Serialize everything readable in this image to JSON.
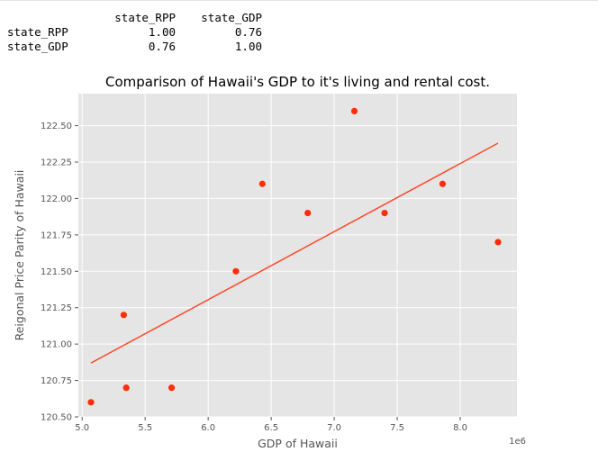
{
  "correlation_table": {
    "columns": [
      "state_RPP",
      "state_GDP"
    ],
    "rows": [
      {
        "label": "state_RPP",
        "values": [
          "1.00",
          "0.76"
        ]
      },
      {
        "label": "state_GDP",
        "values": [
          "0.76",
          "1.00"
        ]
      }
    ]
  },
  "chart_data": {
    "type": "scatter",
    "title": "Comparison of Hawaii's GDP to it's living and rental cost.",
    "xlabel": "GDP of Hawaii",
    "ylabel": "Reigonal Price Parity of Hawaii",
    "x_offset_label": "1e6",
    "xlim": [
      4.97,
      8.45
    ],
    "ylim": [
      120.5,
      122.72
    ],
    "x_ticks": [
      5.0,
      5.5,
      6.0,
      6.5,
      7.0,
      7.5,
      8.0
    ],
    "x_tick_labels": [
      "5.0",
      "5.5",
      "6.0",
      "6.5",
      "7.0",
      "7.5",
      "8.0"
    ],
    "y_ticks": [
      120.5,
      120.75,
      121.0,
      121.25,
      121.5,
      121.75,
      122.0,
      122.25,
      122.5
    ],
    "y_tick_labels": [
      "120.50",
      "120.75",
      "121.00",
      "121.25",
      "121.50",
      "121.75",
      "122.00",
      "122.25",
      "122.50"
    ],
    "grid": true,
    "points": [
      {
        "x": 5.07,
        "y": 120.6
      },
      {
        "x": 5.33,
        "y": 121.2
      },
      {
        "x": 5.35,
        "y": 120.7
      },
      {
        "x": 5.71,
        "y": 120.7
      },
      {
        "x": 6.22,
        "y": 121.5
      },
      {
        "x": 6.43,
        "y": 122.1
      },
      {
        "x": 6.79,
        "y": 121.9
      },
      {
        "x": 7.16,
        "y": 122.6
      },
      {
        "x": 7.4,
        "y": 121.9
      },
      {
        "x": 7.86,
        "y": 122.1
      },
      {
        "x": 8.3,
        "y": 121.7
      }
    ],
    "fit_line": [
      {
        "x": 5.07,
        "y": 120.87
      },
      {
        "x": 8.3,
        "y": 122.38
      }
    ],
    "point_color": "#ff2d0a",
    "line_color": "#ff4a2a",
    "plot_background": "#e5e5e5"
  }
}
